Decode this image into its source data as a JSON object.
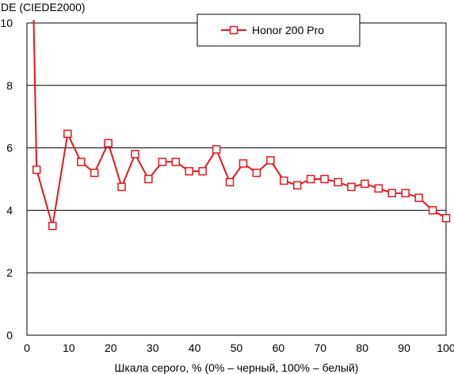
{
  "chart_data": {
    "type": "line",
    "title": "",
    "ylabel": "DE (CIEDE2000)",
    "xlabel": "Шкала серого, % (0% – черный, 100% – белый)",
    "xlim": [
      0,
      100
    ],
    "ylim": [
      0,
      10
    ],
    "x_ticks": [
      "0",
      "10",
      "20",
      "30",
      "40",
      "50",
      "60",
      "70",
      "80",
      "90",
      "100"
    ],
    "y_ticks": [
      "0",
      "2",
      "4",
      "6",
      "8",
      "10"
    ],
    "grid": "horizontal",
    "legend_position": "top-center",
    "series": [
      {
        "name": "Honor 200 Pro",
        "color": "#e4161d",
        "x": [
          1.6,
          2.3,
          6.1,
          9.7,
          12.9,
          16.1,
          19.4,
          22.6,
          25.8,
          29.0,
          32.3,
          35.5,
          38.7,
          41.9,
          45.2,
          48.4,
          51.6,
          54.8,
          58.1,
          61.3,
          64.5,
          67.7,
          71.0,
          74.2,
          77.4,
          80.6,
          83.9,
          87.1,
          90.3,
          93.5,
          96.8,
          100
        ],
        "marker_from_index": 1,
        "values": [
          10.1,
          5.3,
          3.5,
          6.45,
          5.55,
          5.2,
          6.15,
          4.75,
          5.8,
          5.0,
          5.55,
          5.55,
          5.25,
          5.25,
          5.95,
          4.9,
          5.5,
          5.2,
          5.6,
          4.95,
          4.8,
          5.0,
          5.0,
          4.9,
          4.75,
          4.85,
          4.7,
          4.55,
          4.55,
          4.4,
          4.0,
          3.75
        ]
      }
    ]
  }
}
